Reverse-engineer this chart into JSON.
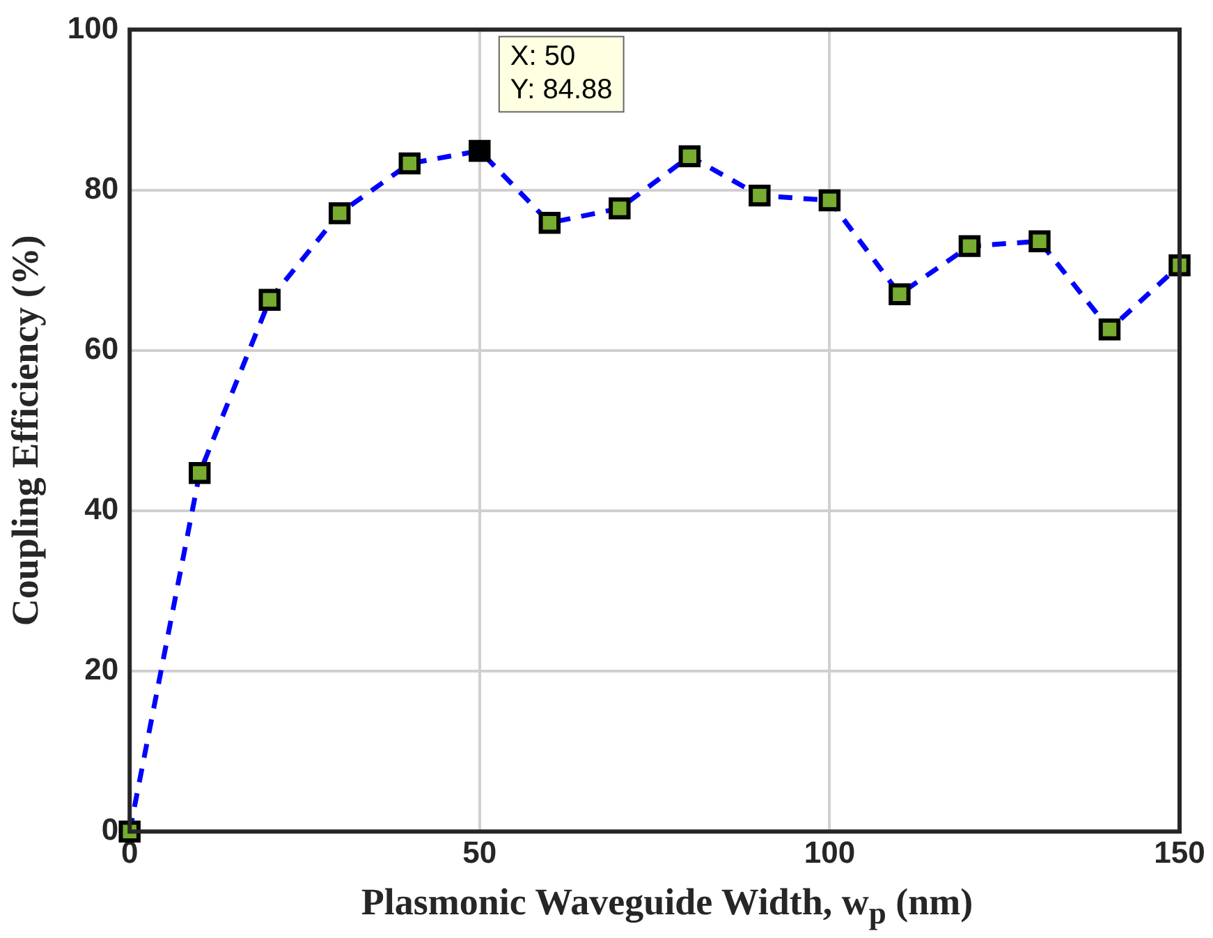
{
  "chart_data": {
    "type": "line",
    "xlabel": "Plasmonic Waveguide Width, w$_{p}$ (nm)",
    "ylabel": "Coupling Efficiency (%)",
    "x": [
      0,
      10,
      20,
      30,
      40,
      50,
      60,
      70,
      80,
      90,
      100,
      110,
      120,
      130,
      140,
      150
    ],
    "series": [
      {
        "color": "#0000ff",
        "values": [
          0,
          44.7,
          66.3,
          77.1,
          83.3,
          84.88,
          75.9,
          77.7,
          84.2,
          79.3,
          78.7,
          67.0,
          73.0,
          73.6,
          62.6,
          70.6
        ],
        "colors": [
          "#77ac30",
          "#77ac30",
          "#77ac30",
          "#77ac30",
          "#77ac30",
          "#000000",
          "#77ac30",
          "#77ac30",
          "#77ac30",
          "#77ac30",
          "#77ac30",
          "#77ac30",
          "#77ac30",
          "#77ac30",
          "#77ac30",
          "#77ac30"
        ]
      }
    ],
    "xlim": [
      0,
      150
    ],
    "xticks": [
      0,
      50,
      100,
      150
    ],
    "ylim": [
      0,
      100
    ],
    "yticks": [
      0,
      20,
      40,
      60,
      80,
      100
    ],
    "grid": true,
    "legend": false,
    "marker": "square",
    "line_style": "dashed",
    "annotations": [
      {
        "text": "X: 50\nY: 84.88",
        "x": 50,
        "y": 84.88
      }
    ]
  }
}
